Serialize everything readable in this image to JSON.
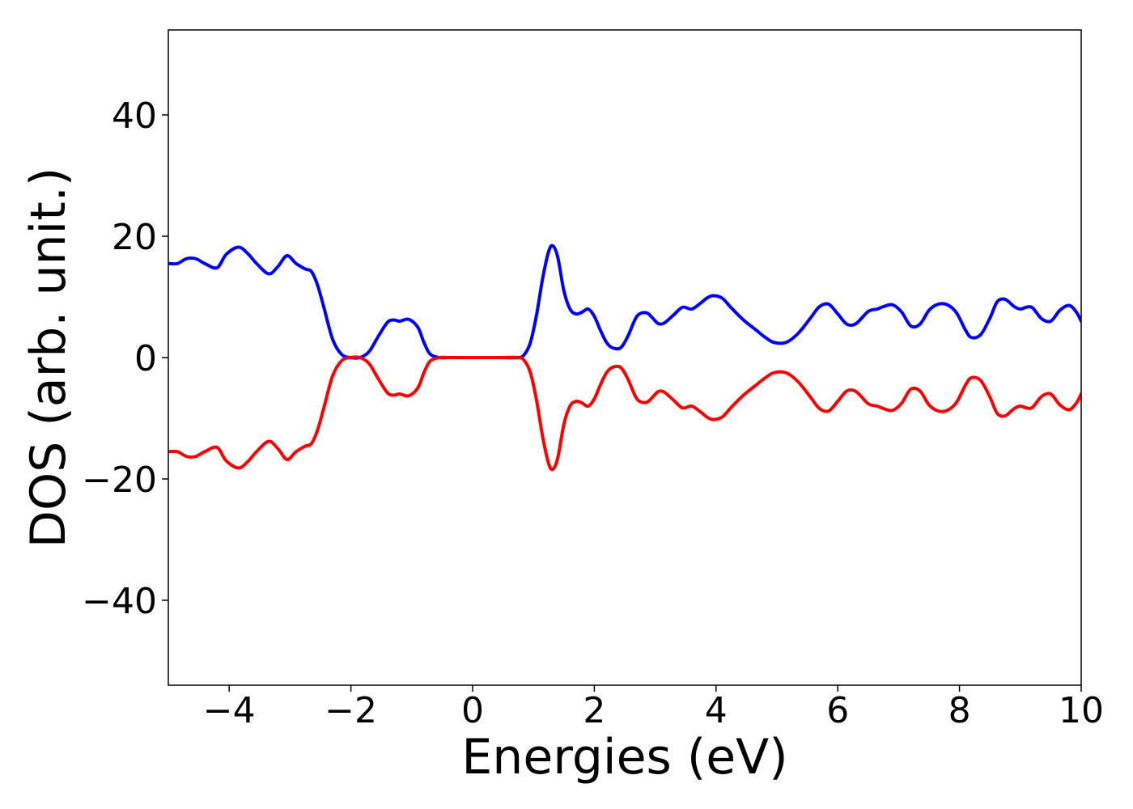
{
  "chart_data": {
    "type": "line",
    "xlabel": "Energies (eV)",
    "ylabel": "DOS (arb. unit.)",
    "xlim": [
      -5,
      10
    ],
    "ylim": [
      -54,
      54
    ],
    "xticks": [
      {
        "value": -4,
        "label": "−4"
      },
      {
        "value": -2,
        "label": "−2"
      },
      {
        "value": 0,
        "label": "0"
      },
      {
        "value": 2,
        "label": "2"
      },
      {
        "value": 4,
        "label": "4"
      },
      {
        "value": 6,
        "label": "6"
      },
      {
        "value": 8,
        "label": "8"
      },
      {
        "value": 10,
        "label": "10"
      }
    ],
    "yticks": [
      {
        "value": -40,
        "label": "−40"
      },
      {
        "value": -20,
        "label": "−20"
      },
      {
        "value": 0,
        "label": "0"
      },
      {
        "value": 20,
        "label": "20"
      },
      {
        "value": 40,
        "label": "40"
      }
    ],
    "grid": false,
    "series": [
      {
        "color": "#0000ff",
        "x": [
          -5.0,
          -4.85,
          -4.7,
          -4.55,
          -4.4,
          -4.2,
          -4.05,
          -3.85,
          -3.7,
          -3.55,
          -3.35,
          -3.2,
          -3.05,
          -2.9,
          -2.75,
          -2.65,
          -2.55,
          -2.45,
          -2.3,
          -2.15,
          -2.0,
          -1.85,
          -1.7,
          -1.55,
          -1.4,
          -1.3,
          -1.2,
          -1.05,
          -0.9,
          -0.8,
          -0.7,
          -0.55,
          -0.4,
          0.0,
          0.4,
          0.75,
          0.85,
          0.95,
          1.05,
          1.15,
          1.25,
          1.32,
          1.4,
          1.5,
          1.6,
          1.7,
          1.8,
          1.9,
          2.0,
          2.1,
          2.2,
          2.3,
          2.43,
          2.55,
          2.7,
          2.85,
          2.95,
          3.05,
          3.15,
          3.3,
          3.45,
          3.6,
          3.75,
          3.85,
          3.95,
          4.1,
          4.25,
          4.45,
          4.65,
          4.8,
          4.95,
          5.15,
          5.35,
          5.55,
          5.7,
          5.85,
          6.0,
          6.15,
          6.3,
          6.5,
          6.65,
          6.75,
          6.9,
          7.05,
          7.2,
          7.35,
          7.5,
          7.65,
          7.8,
          7.95,
          8.1,
          8.2,
          8.35,
          8.5,
          8.62,
          8.75,
          8.9,
          9.0,
          9.1,
          9.2,
          9.35,
          9.5,
          9.65,
          9.8,
          9.92,
          10.0
        ],
        "y": [
          15.5,
          15.5,
          16.3,
          16.3,
          15.5,
          14.8,
          17.0,
          18.2,
          17.2,
          15.5,
          13.8,
          15.0,
          16.8,
          15.5,
          14.6,
          14.2,
          12.0,
          8.5,
          3.0,
          0.5,
          0.0,
          0.0,
          1.0,
          3.5,
          5.8,
          6.2,
          6.0,
          6.3,
          5.0,
          2.5,
          0.6,
          0.0,
          0.0,
          0.0,
          0.0,
          0.0,
          0.5,
          2.5,
          7.0,
          13.0,
          17.5,
          18.4,
          16.5,
          11.0,
          8.0,
          7.2,
          7.5,
          8.0,
          6.8,
          4.5,
          2.5,
          1.6,
          1.6,
          3.5,
          6.8,
          7.4,
          6.6,
          5.6,
          5.7,
          7.0,
          8.3,
          8.0,
          9.0,
          9.8,
          10.2,
          9.8,
          8.2,
          6.2,
          4.6,
          3.4,
          2.5,
          2.5,
          4.0,
          6.5,
          8.4,
          8.8,
          7.2,
          5.5,
          5.6,
          7.6,
          8.0,
          8.4,
          8.7,
          7.5,
          5.2,
          5.5,
          7.8,
          8.8,
          8.7,
          7.4,
          4.5,
          3.3,
          3.8,
          6.5,
          9.2,
          9.6,
          8.4,
          8.0,
          8.3,
          8.2,
          6.4,
          6.0,
          7.8,
          8.6,
          7.5,
          6.0
        ]
      },
      {
        "color": "#ff0000",
        "x": [
          -5.0,
          -4.85,
          -4.7,
          -4.55,
          -4.4,
          -4.2,
          -4.05,
          -3.85,
          -3.7,
          -3.55,
          -3.35,
          -3.2,
          -3.05,
          -2.9,
          -2.75,
          -2.65,
          -2.55,
          -2.45,
          -2.3,
          -2.15,
          -2.0,
          -1.85,
          -1.7,
          -1.55,
          -1.4,
          -1.3,
          -1.2,
          -1.05,
          -0.9,
          -0.8,
          -0.7,
          -0.55,
          -0.4,
          0.0,
          0.4,
          0.75,
          0.85,
          0.95,
          1.05,
          1.15,
          1.25,
          1.32,
          1.4,
          1.5,
          1.6,
          1.7,
          1.8,
          1.9,
          2.0,
          2.1,
          2.2,
          2.3,
          2.43,
          2.55,
          2.7,
          2.85,
          2.95,
          3.05,
          3.15,
          3.3,
          3.45,
          3.6,
          3.75,
          3.85,
          3.95,
          4.1,
          4.25,
          4.45,
          4.65,
          4.8,
          4.95,
          5.15,
          5.35,
          5.55,
          5.7,
          5.85,
          6.0,
          6.15,
          6.3,
          6.5,
          6.65,
          6.75,
          6.9,
          7.05,
          7.2,
          7.35,
          7.5,
          7.65,
          7.8,
          7.95,
          8.1,
          8.2,
          8.35,
          8.5,
          8.62,
          8.75,
          8.9,
          9.0,
          9.1,
          9.2,
          9.35,
          9.5,
          9.65,
          9.8,
          9.92,
          10.0
        ],
        "y": [
          -15.5,
          -15.5,
          -16.3,
          -16.3,
          -15.5,
          -14.8,
          -17.0,
          -18.2,
          -17.2,
          -15.5,
          -13.8,
          -15.0,
          -16.8,
          -15.5,
          -14.6,
          -14.2,
          -12.0,
          -8.5,
          -3.0,
          -0.5,
          0.0,
          0.0,
          -1.0,
          -3.5,
          -5.8,
          -6.2,
          -6.0,
          -6.3,
          -5.0,
          -2.5,
          -0.6,
          0.0,
          0.0,
          0.0,
          0.0,
          0.0,
          -0.5,
          -2.5,
          -7.0,
          -13.0,
          -17.5,
          -18.4,
          -16.5,
          -11.0,
          -8.0,
          -7.2,
          -7.5,
          -8.0,
          -6.8,
          -4.5,
          -2.5,
          -1.6,
          -1.6,
          -3.5,
          -6.8,
          -7.4,
          -6.6,
          -5.6,
          -5.7,
          -7.0,
          -8.3,
          -8.0,
          -9.0,
          -9.8,
          -10.2,
          -9.8,
          -8.2,
          -6.2,
          -4.6,
          -3.4,
          -2.5,
          -2.5,
          -4.0,
          -6.5,
          -8.4,
          -8.8,
          -7.2,
          -5.5,
          -5.6,
          -7.6,
          -8.0,
          -8.4,
          -8.7,
          -7.5,
          -5.2,
          -5.5,
          -7.8,
          -8.8,
          -8.7,
          -7.4,
          -4.5,
          -3.3,
          -3.8,
          -6.5,
          -9.2,
          -9.6,
          -8.4,
          -8.0,
          -8.3,
          -8.2,
          -6.4,
          -6.0,
          -7.8,
          -8.6,
          -7.5,
          -6.0
        ]
      }
    ]
  }
}
